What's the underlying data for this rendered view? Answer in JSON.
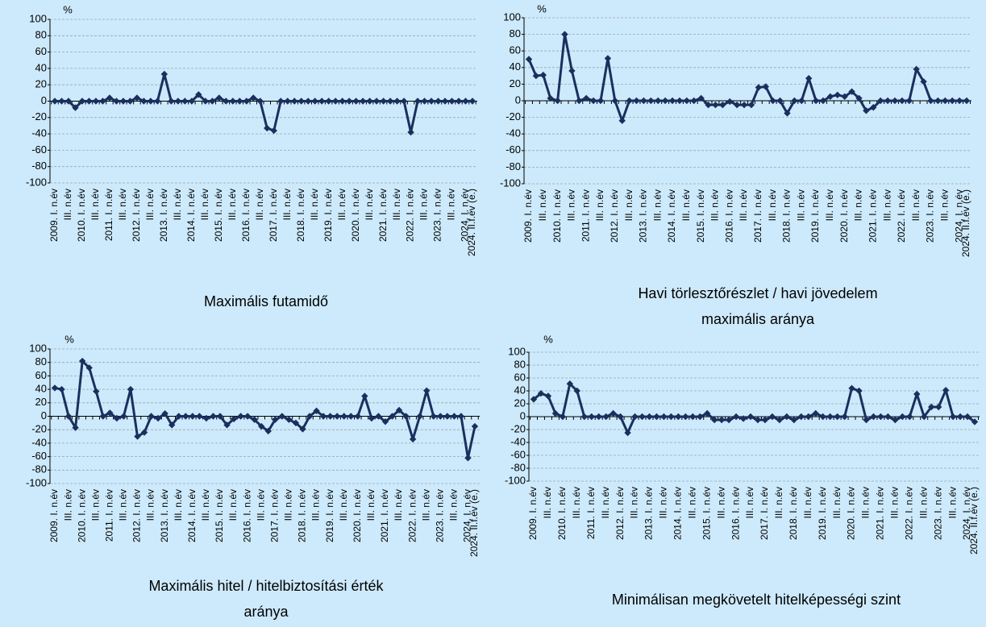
{
  "chart_data": [
    {
      "type": "line",
      "title": [
        "Maximális futamidő"
      ],
      "unit_label": "%",
      "color": "#1b2f5e",
      "grid": true,
      "ylim": [
        -100,
        100
      ],
      "yticks": [
        -100,
        -80,
        -60,
        -40,
        -20,
        0,
        20,
        40,
        60,
        80,
        100
      ],
      "categories": [
        "2009. I. n.év",
        null,
        "III. n.év",
        null,
        "2010. I. n.év",
        null,
        "III. n.év",
        null,
        "2011. I. n.év",
        null,
        "III. n.év",
        null,
        "2012. I. n.év",
        null,
        "III. n.év",
        null,
        "2013. I. n.év",
        null,
        "III. n.év",
        null,
        "2014. I. n.év",
        null,
        "III. n.év",
        null,
        "2015. I. n.év",
        null,
        "III. n.év",
        null,
        "2016. I. n.év",
        null,
        "III. n.év",
        null,
        "2017. I. n.év",
        null,
        "III. n.év",
        null,
        "2018. I. n.év",
        null,
        "III. n.év",
        null,
        "2019. I. n.év",
        null,
        "III. n.év",
        null,
        "2020. I. n.év",
        null,
        "III. n.év",
        null,
        "2021. I. n.év",
        null,
        "III. n.év",
        null,
        "2022. I. n.év",
        null,
        "III. n.év",
        null,
        "2023. I. n.év",
        null,
        "III. n.év",
        null,
        "2024. I. n.év",
        "2024. II.f.év (e.)"
      ],
      "values": [
        0,
        0,
        0,
        -8,
        0,
        0,
        0,
        0,
        4,
        0,
        0,
        0,
        4,
        0,
        0,
        0,
        33,
        0,
        0,
        0,
        0,
        8,
        0,
        0,
        4,
        0,
        0,
        0,
        0,
        4,
        0,
        -33,
        -36,
        0,
        0,
        0,
        0,
        0,
        0,
        0,
        0,
        0,
        0,
        0,
        0,
        0,
        0,
        0,
        0,
        0,
        0,
        0,
        -38,
        0,
        0,
        0,
        0,
        0,
        0,
        0,
        0,
        0
      ]
    },
    {
      "type": "line",
      "title": [
        "Havi törlesztőrészlet / havi jövedelem",
        "maximális aránya"
      ],
      "unit_label": "%",
      "color": "#1b2f5e",
      "grid": true,
      "ylim": [
        -100,
        100
      ],
      "yticks": [
        -100,
        -80,
        -60,
        -40,
        -20,
        0,
        20,
        40,
        60,
        80,
        100
      ],
      "categories": [
        "2009. I. n.év",
        null,
        "III. n.év",
        null,
        "2010. I. n.év",
        null,
        "III. n.év",
        null,
        "2011. I. n.év",
        null,
        "III. n.év",
        null,
        "2012. I. n.év",
        null,
        "III. n.év",
        null,
        "2013. I. n.év",
        null,
        "III. n.év",
        null,
        "2014. I. n.év",
        null,
        "III. n.év",
        null,
        "2015. I. n.év",
        null,
        "III. n.év",
        null,
        "2016. I. n.év",
        null,
        "III. n.év",
        null,
        "2017. I. n.év",
        null,
        "III. n.év",
        null,
        "2018. I. n.év",
        null,
        "III. n.év",
        null,
        "2019. I. n.év",
        null,
        "III. n.év",
        null,
        "2020. I. n.év",
        null,
        "III. n.év",
        null,
        "2021. I. n.év",
        null,
        "III. n.év",
        null,
        "2022. I. n.év",
        null,
        "III. n.év",
        null,
        "2023. I. n.év",
        null,
        "III. n.év",
        null,
        "2024. I. n.év",
        "2024. II.f.év (e.)"
      ],
      "values": [
        50,
        30,
        31,
        3,
        0,
        80,
        36,
        0,
        3,
        0,
        0,
        51,
        0,
        -24,
        0,
        0,
        0,
        0,
        0,
        0,
        0,
        0,
        0,
        0,
        3,
        -5,
        -5,
        -5,
        -1,
        -5,
        -5,
        -5,
        16,
        17,
        0,
        0,
        -15,
        0,
        0,
        27,
        0,
        0,
        5,
        7,
        5,
        11,
        3,
        -12,
        -8,
        0,
        0,
        0,
        0,
        0,
        38,
        23,
        0,
        0,
        0,
        0,
        0,
        0
      ]
    },
    {
      "type": "line",
      "title": [
        "Maximális hitel / hitelbiztosítási érték",
        "aránya"
      ],
      "unit_label": "%",
      "color": "#1b2f5e",
      "grid": true,
      "ylim": [
        -100,
        100
      ],
      "yticks": [
        -100,
        -80,
        -60,
        -40,
        -20,
        0,
        20,
        40,
        60,
        80,
        100
      ],
      "categories": [
        "2009. I. n.év",
        null,
        "III. n.év",
        null,
        "2010. I. n.év",
        null,
        "III. n.év",
        null,
        "2011. I. n.év",
        null,
        "III. n.év",
        null,
        "2012. I. n.év",
        null,
        "III. n.év",
        null,
        "2013. I. n.év",
        null,
        "III. n.év",
        null,
        "2014. I. n.év",
        null,
        "III. n.év",
        null,
        "2015. I. n.év",
        null,
        "III. n.év",
        null,
        "2016. I. n.év",
        null,
        "III. n.év",
        null,
        "2017. I. n.év",
        null,
        "III. n.év",
        null,
        "2018. I. n.év",
        null,
        "III. n.év",
        null,
        "2019. I. n.év",
        null,
        "III. n.év",
        null,
        "2020. I. n.év",
        null,
        "III. n.év",
        null,
        "2021. I. n.év",
        null,
        "III. n.év",
        null,
        "2022. I. n.év",
        null,
        "III. n.év",
        null,
        "2023. I. n.év",
        null,
        "III. n.év",
        null,
        "2024. I. n.év",
        "2024. II.f.év (e.)"
      ],
      "values": [
        42,
        40,
        0,
        -17,
        82,
        72,
        37,
        0,
        5,
        -3,
        0,
        40,
        -30,
        -24,
        0,
        -3,
        4,
        -13,
        0,
        0,
        0,
        0,
        -3,
        0,
        0,
        -13,
        -4,
        0,
        0,
        -5,
        -15,
        -22,
        -5,
        0,
        -5,
        -10,
        -19,
        0,
        8,
        0,
        0,
        0,
        0,
        0,
        0,
        30,
        -3,
        0,
        -8,
        0,
        9,
        0,
        -34,
        0,
        38,
        0,
        0,
        0,
        0,
        0,
        -62,
        -15
      ]
    },
    {
      "type": "line",
      "title": [
        "Minimálisan megkövetelt hitelképességi szint"
      ],
      "unit_label": "%",
      "color": "#1b2f5e",
      "grid": true,
      "ylim": [
        -100,
        100
      ],
      "yticks": [
        -100,
        -80,
        -60,
        -40,
        -20,
        0,
        20,
        40,
        60,
        80,
        100
      ],
      "categories": [
        "2009. I. n.év",
        null,
        "III. n.év",
        null,
        "2010. I. n.év",
        null,
        "III. n.év",
        null,
        "2011. I. n.év",
        null,
        "III. n.év",
        null,
        "2012. I. n.év",
        null,
        "III. n.év",
        null,
        "2013. I. n.év",
        null,
        "III. n.év",
        null,
        "2014. I. n.év",
        null,
        "III. n.év",
        null,
        "2015. I. n.év",
        null,
        "III. n.év",
        null,
        "2016. I. n.év",
        null,
        "III. n.év",
        null,
        "2017. I. n.év",
        null,
        "III. n.év",
        null,
        "2018. I. n.év",
        null,
        "III. n.év",
        null,
        "2019. I. n.év",
        null,
        "III. n.év",
        null,
        "2020. I. n.év",
        null,
        "III. n.év",
        null,
        "2021. I. n.év",
        null,
        "III. n.év",
        null,
        "2022. I. n.év",
        null,
        "III. n.év",
        null,
        "2023. I. n.év",
        null,
        "III. n.év",
        null,
        "2024. I. n.év",
        "2024. II.f.év (e.)"
      ],
      "values": [
        27,
        36,
        32,
        5,
        0,
        51,
        40,
        0,
        0,
        0,
        0,
        5,
        0,
        -25,
        0,
        0,
        0,
        0,
        0,
        0,
        0,
        0,
        0,
        0,
        5,
        -5,
        -5,
        -5,
        0,
        -3,
        0,
        -5,
        -5,
        0,
        -5,
        0,
        -5,
        0,
        0,
        5,
        0,
        0,
        0,
        0,
        44,
        40,
        -5,
        0,
        0,
        0,
        -5,
        0,
        0,
        35,
        0,
        15,
        15,
        41,
        0,
        0,
        0,
        -8
      ]
    }
  ]
}
